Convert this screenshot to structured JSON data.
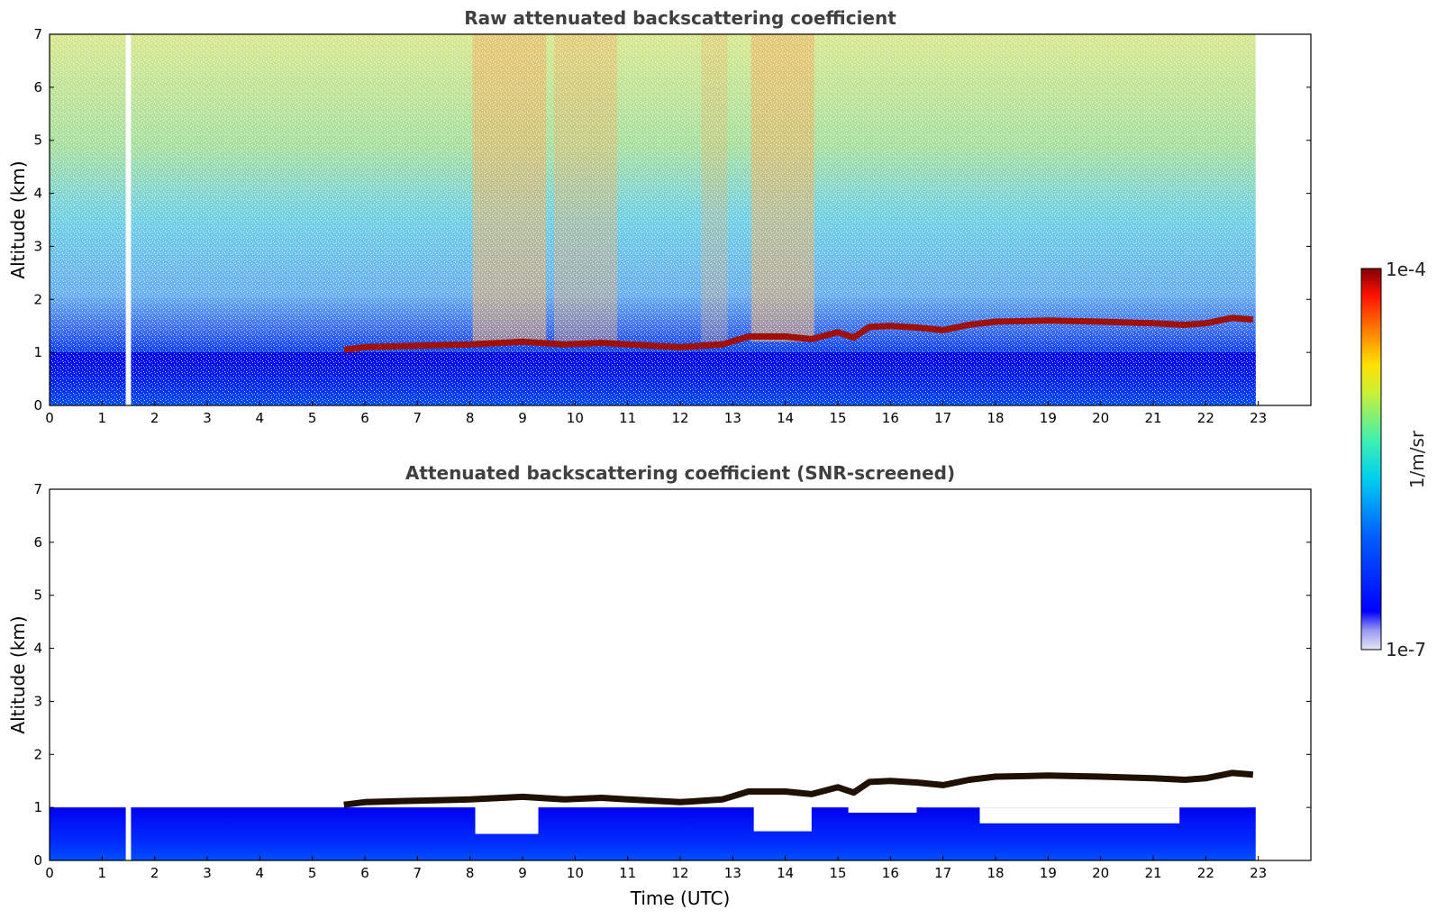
{
  "chart_data": [
    {
      "type": "heatmap",
      "title": "Raw attenuated backscattering coefficient",
      "ylabel": "Altitude (km)",
      "xlabel": "",
      "xlim": [
        0,
        24
      ],
      "ylim": [
        0,
        7
      ],
      "x_ticks": [
        "0",
        "1",
        "2",
        "3",
        "4",
        "5",
        "6",
        "7",
        "8",
        "9",
        "10",
        "11",
        "12",
        "13",
        "14",
        "15",
        "16",
        "17",
        "18",
        "19",
        "20",
        "21",
        "22",
        "23"
      ],
      "y_ticks": [
        "0",
        "1",
        "2",
        "3",
        "4",
        "5",
        "6",
        "7"
      ],
      "data_end_time": 22.95,
      "data_gap": [
        1.45,
        1.55
      ],
      "cloud_base": [
        [
          5.6,
          1.05
        ],
        [
          6.0,
          1.1
        ],
        [
          6.7,
          1.12
        ],
        [
          8.0,
          1.15
        ],
        [
          9.0,
          1.2
        ],
        [
          9.8,
          1.15
        ],
        [
          10.5,
          1.18
        ],
        [
          11.0,
          1.15
        ],
        [
          12.0,
          1.1
        ],
        [
          12.8,
          1.15
        ],
        [
          13.3,
          1.3
        ],
        [
          14.0,
          1.3
        ],
        [
          14.5,
          1.25
        ],
        [
          15.0,
          1.38
        ],
        [
          15.3,
          1.28
        ],
        [
          15.6,
          1.48
        ],
        [
          16.0,
          1.5
        ],
        [
          16.5,
          1.47
        ],
        [
          17.0,
          1.42
        ],
        [
          17.5,
          1.52
        ],
        [
          18.0,
          1.58
        ],
        [
          19.0,
          1.6
        ],
        [
          20.0,
          1.58
        ],
        [
          21.0,
          1.55
        ],
        [
          21.6,
          1.52
        ],
        [
          22.0,
          1.55
        ],
        [
          22.5,
          1.65
        ],
        [
          22.9,
          1.62
        ]
      ]
    },
    {
      "type": "heatmap",
      "title": "Attenuated backscattering coefficient (SNR-screened)",
      "ylabel": "Altitude (km)",
      "xlabel": "Time (UTC)",
      "xlim": [
        0,
        24
      ],
      "ylim": [
        0,
        7
      ],
      "x_ticks": [
        "0",
        "1",
        "2",
        "3",
        "4",
        "5",
        "6",
        "7",
        "8",
        "9",
        "10",
        "11",
        "12",
        "13",
        "14",
        "15",
        "16",
        "17",
        "18",
        "19",
        "20",
        "21",
        "22",
        "23"
      ],
      "y_ticks": [
        "0",
        "1",
        "2",
        "3",
        "4",
        "5",
        "6",
        "7"
      ],
      "data_end_time": 22.95,
      "data_gap": [
        1.45,
        1.55
      ]
    }
  ],
  "colorbar": {
    "label": "1/m/sr",
    "max_label": "1e-4",
    "min_label": "1e-7",
    "scale": "log",
    "colormap": "jet",
    "colors": [
      "#e6e6f5",
      "#b4b4f0",
      "#8080f5",
      "#0000ff",
      "#0050ff",
      "#00a0ff",
      "#00e5e5",
      "#60f0a0",
      "#c0f040",
      "#ffe000",
      "#ff8000",
      "#ff2000",
      "#800000"
    ]
  }
}
